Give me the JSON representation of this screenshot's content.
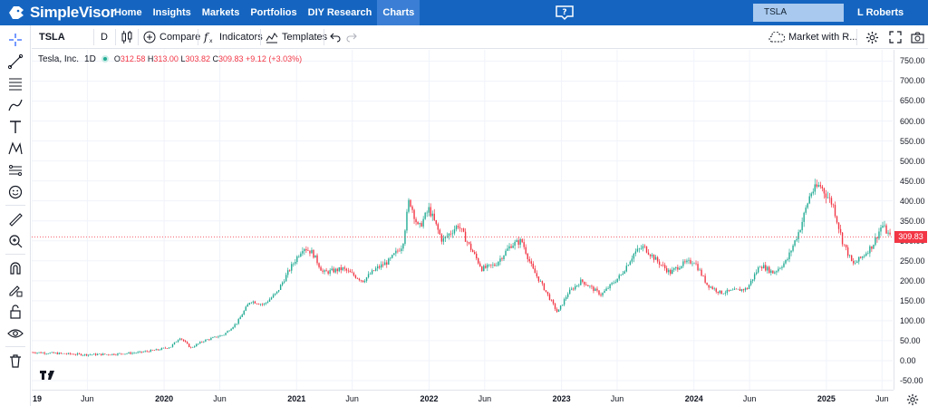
{
  "topbar": {
    "brand": "SimpleVisor",
    "nav": [
      "Home",
      "Insights",
      "Markets",
      "Portfolios",
      "DIY Research",
      "Charts"
    ],
    "active": "Charts",
    "search_value": "TSLA",
    "user": "L Roberts"
  },
  "toolbar": {
    "symbol": "TSLA",
    "interval": "D",
    "compare": "Compare",
    "indicators": "Indicators",
    "templates": "Templates",
    "market_status": "Market with R..."
  },
  "legend": {
    "name": "Tesla, Inc.",
    "interval": "1D",
    "o_label": "O",
    "o": "312.58",
    "h_label": "H",
    "h": "313.00",
    "l_label": "L",
    "l": "303.82",
    "c_label": "C",
    "c": "309.83",
    "change": "+9.12 (+3.03%)"
  },
  "last_price": "309.83",
  "colors": {
    "up": "#22ab94",
    "down": "#f23645",
    "brand": "#1565c0"
  },
  "chart_data": {
    "type": "candlestick",
    "title": "Tesla, Inc. 1D",
    "ylim": [
      -50,
      760
    ],
    "y_ticks": [
      "750.00",
      "700.00",
      "650.00",
      "600.00",
      "550.00",
      "500.00",
      "450.00",
      "400.00",
      "350.00",
      "300.00",
      "250.00",
      "200.00",
      "150.00",
      "100.00",
      "50.00",
      "0.00",
      "-50.00"
    ],
    "y_tick_values": [
      750,
      700,
      650,
      600,
      550,
      500,
      450,
      400,
      350,
      300,
      250,
      200,
      150,
      100,
      50,
      0,
      -50
    ],
    "x_labels": [
      "19",
      "Jun",
      "2020",
      "Jun",
      "2021",
      "Jun",
      "2022",
      "Jun",
      "2023",
      "Jun",
      "2024",
      "Jun",
      "2025",
      "Jun"
    ],
    "x_label_times": [
      2019.0,
      2019.42,
      2020.0,
      2020.42,
      2021.0,
      2021.42,
      2022.0,
      2022.42,
      2023.0,
      2023.42,
      2024.0,
      2024.42,
      2025.0,
      2025.42
    ],
    "x_range": [
      2019.0,
      2025.5
    ],
    "price_line": 309.83,
    "path_points": [
      [
        2019.0,
        21
      ],
      [
        2019.2,
        18
      ],
      [
        2019.4,
        15
      ],
      [
        2019.6,
        16
      ],
      [
        2019.8,
        20
      ],
      [
        2019.95,
        27
      ],
      [
        2020.05,
        35
      ],
      [
        2020.12,
        58
      ],
      [
        2020.2,
        32
      ],
      [
        2020.3,
        50
      ],
      [
        2020.45,
        65
      ],
      [
        2020.55,
        95
      ],
      [
        2020.65,
        150
      ],
      [
        2020.75,
        140
      ],
      [
        2020.85,
        170
      ],
      [
        2020.95,
        230
      ],
      [
        2021.05,
        285
      ],
      [
        2021.12,
        270
      ],
      [
        2021.2,
        220
      ],
      [
        2021.35,
        230
      ],
      [
        2021.5,
        200
      ],
      [
        2021.6,
        230
      ],
      [
        2021.7,
        250
      ],
      [
        2021.8,
        290
      ],
      [
        2021.85,
        405
      ],
      [
        2021.92,
        330
      ],
      [
        2022.0,
        380
      ],
      [
        2022.1,
        300
      ],
      [
        2022.22,
        340
      ],
      [
        2022.3,
        290
      ],
      [
        2022.4,
        230
      ],
      [
        2022.5,
        240
      ],
      [
        2022.62,
        290
      ],
      [
        2022.7,
        300
      ],
      [
        2022.78,
        230
      ],
      [
        2022.87,
        180
      ],
      [
        2022.97,
        120
      ],
      [
        2023.05,
        170
      ],
      [
        2023.15,
        200
      ],
      [
        2023.3,
        165
      ],
      [
        2023.45,
        215
      ],
      [
        2023.55,
        270
      ],
      [
        2023.62,
        285
      ],
      [
        2023.72,
        250
      ],
      [
        2023.82,
        220
      ],
      [
        2023.9,
        240
      ],
      [
        2024.0,
        250
      ],
      [
        2024.1,
        190
      ],
      [
        2024.2,
        170
      ],
      [
        2024.3,
        175
      ],
      [
        2024.4,
        180
      ],
      [
        2024.5,
        240
      ],
      [
        2024.6,
        220
      ],
      [
        2024.7,
        250
      ],
      [
        2024.8,
        330
      ],
      [
        2024.88,
        420
      ],
      [
        2024.95,
        440
      ],
      [
        2025.05,
        390
      ],
      [
        2025.12,
        300
      ],
      [
        2025.2,
        240
      ],
      [
        2025.27,
        260
      ],
      [
        2025.35,
        290
      ],
      [
        2025.42,
        340
      ],
      [
        2025.48,
        310
      ]
    ]
  }
}
